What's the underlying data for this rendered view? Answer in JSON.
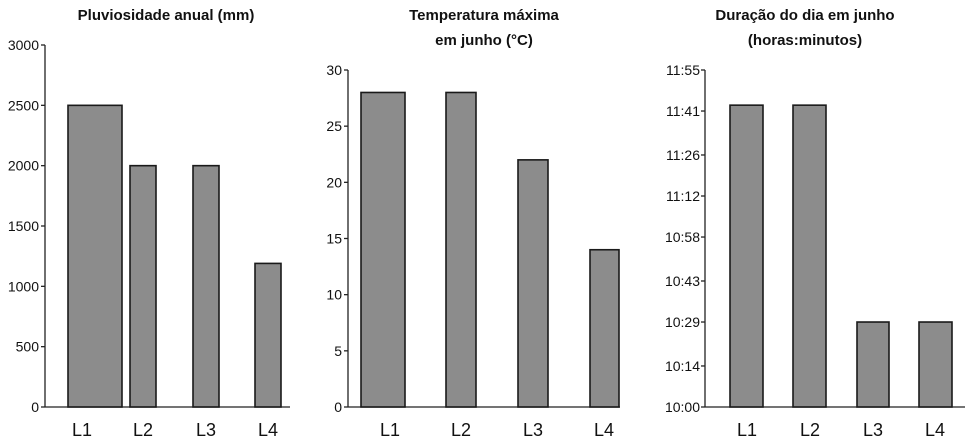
{
  "chart_data": [
    {
      "type": "bar",
      "title": [
        "Pluviosidade anual (mm)"
      ],
      "categories": [
        "L1",
        "L2",
        "L3",
        "L4"
      ],
      "values": [
        2500,
        2000,
        2000,
        1190
      ],
      "ylim": [
        0,
        3000
      ],
      "yticks": [
        0,
        500,
        1000,
        1500,
        2000,
        2500,
        3000
      ],
      "ytick_labels": [
        "0",
        "500",
        "1000",
        "1500",
        "2000",
        "2500",
        "3000"
      ],
      "grid": false,
      "bar_color": "#8c8c8c"
    },
    {
      "type": "bar",
      "title": [
        "Temperatura máxima",
        "em junho (°C)"
      ],
      "categories": [
        "L1",
        "L2",
        "L3",
        "L4"
      ],
      "values": [
        28,
        28,
        22,
        14
      ],
      "ylim": [
        0,
        30
      ],
      "yticks": [
        0,
        5,
        10,
        15,
        20,
        25,
        30
      ],
      "ytick_labels": [
        "0",
        "5",
        "10",
        "15",
        "20",
        "25",
        "30"
      ],
      "grid": false,
      "bar_color": "#8c8c8c"
    },
    {
      "type": "bar",
      "title": [
        "Duração do dia em junho",
        "(horas:minutos)"
      ],
      "categories": [
        "L1",
        "L2",
        "L3",
        "L4"
      ],
      "values": [
        "11:43",
        "11:43",
        "10:29",
        "10:29"
      ],
      "ylim": [
        "10:00",
        "11:55"
      ],
      "yticks": [
        "10:00",
        "10:14",
        "10:29",
        "10:43",
        "10:58",
        "11:12",
        "11:26",
        "11:41",
        "11:55"
      ],
      "ytick_labels": [
        "10:00",
        "10:14",
        "10:29",
        "10:43",
        "10:58",
        "11:12",
        "11:26",
        "11:41",
        "11:55"
      ],
      "grid": false,
      "bar_color": "#8c8c8c"
    }
  ]
}
